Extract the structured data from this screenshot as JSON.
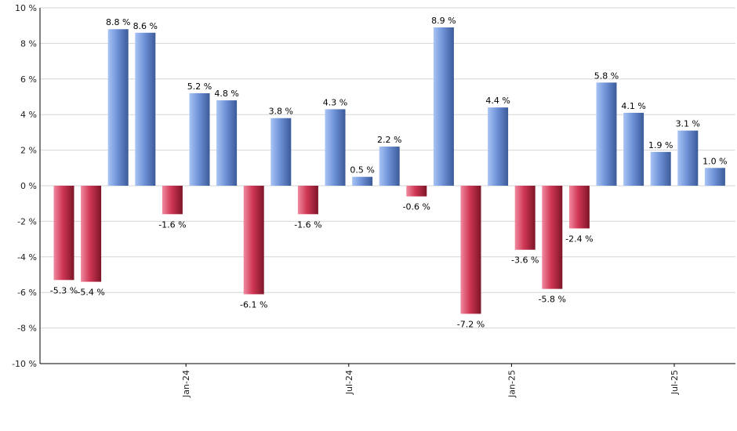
{
  "chart_data": {
    "type": "bar",
    "title": "",
    "xlabel": "",
    "ylabel": "",
    "ylim": [
      -10,
      10
    ],
    "y_ticks": [
      "10 %",
      "8 %",
      "6 %",
      "4 %",
      "2 %",
      "0 %",
      "-2 %",
      "-4 %",
      "-6 %",
      "-8 %",
      "-10 %"
    ],
    "y_tick_values": [
      10,
      8,
      6,
      4,
      2,
      0,
      -2,
      -4,
      -6,
      -8,
      -10
    ],
    "x_ticks": [
      "Jan-24",
      "Jul-24",
      "Jan-25",
      "Jul-25"
    ],
    "x_tick_after_bar_index": [
      4,
      10,
      16,
      22
    ],
    "grid": true,
    "legend": "none",
    "colors": {
      "positive": "#6f93d8",
      "negative": "#c8334f",
      "grid": "#d6d6d6",
      "axis": "#000000"
    },
    "values": [
      -5.3,
      -5.4,
      8.8,
      8.6,
      -1.6,
      5.2,
      4.8,
      -6.1,
      3.8,
      -1.6,
      4.3,
      0.5,
      2.2,
      -0.6,
      8.9,
      -7.2,
      4.4,
      -3.6,
      -5.8,
      -2.4,
      5.8,
      4.1,
      1.9,
      3.1,
      1.0
    ],
    "labels": [
      "-5.3 %",
      "-5.4 %",
      "8.8 %",
      "8.6 %",
      "-1.6 %",
      "5.2 %",
      "4.8 %",
      "-6.1 %",
      "3.8 %",
      "-1.6 %",
      "4.3 %",
      "0.5 %",
      "2.2 %",
      "-0.6 %",
      "8.9 %",
      "-7.2 %",
      "4.4 %",
      "-3.6 %",
      "-5.8 %",
      "-2.4 %",
      "5.8 %",
      "4.1 %",
      "1.9 %",
      "3.1 %",
      "1.0 %"
    ]
  }
}
